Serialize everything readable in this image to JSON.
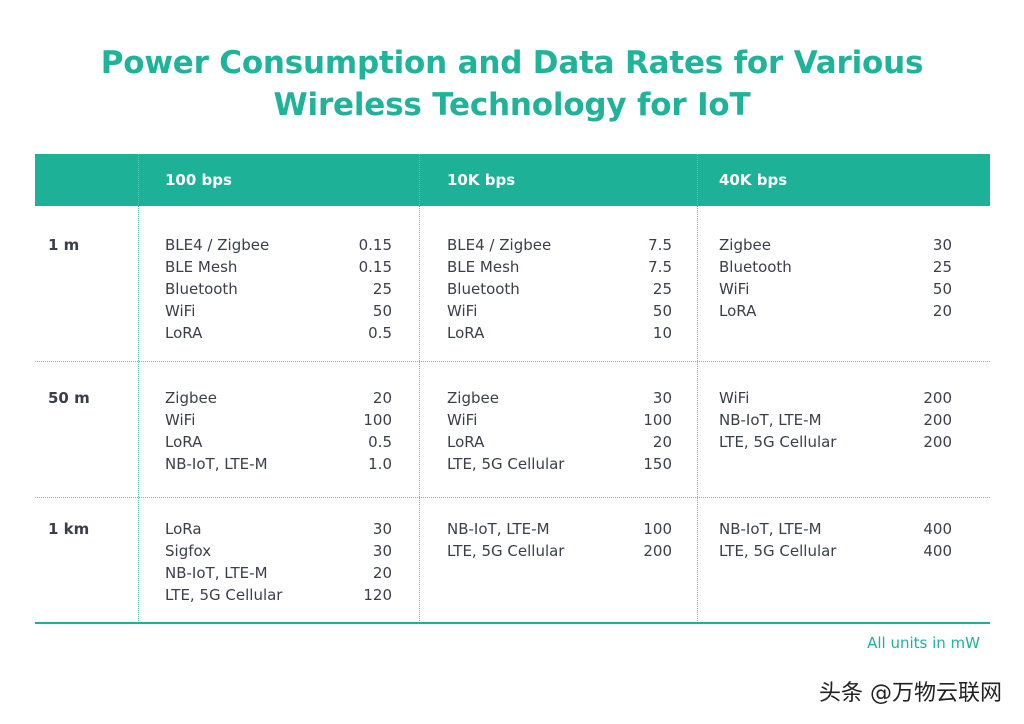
{
  "title_line1": "Power Consumption and Data Rates for Various",
  "title_line2": "Wireless Technology for IoT",
  "watermark": "头条 @万物云联网",
  "chart_data": {
    "type": "table",
    "columns": [
      "100 bps",
      "10K bps",
      "40K bps"
    ],
    "rows": [
      {
        "label": "1 m",
        "cells": [
          [
            [
              "BLE4 / Zigbee",
              "0.15"
            ],
            [
              "BLE Mesh",
              "0.15"
            ],
            [
              "Bluetooth",
              "25"
            ],
            [
              "WiFi",
              "50"
            ],
            [
              "LoRA",
              "0.5"
            ]
          ],
          [
            [
              "BLE4 / Zigbee",
              "7.5"
            ],
            [
              "BLE Mesh",
              "7.5"
            ],
            [
              "Bluetooth",
              "25"
            ],
            [
              "WiFi",
              "50"
            ],
            [
              "LoRA",
              "10"
            ]
          ],
          [
            [
              "Zigbee",
              "30"
            ],
            [
              "Bluetooth",
              "25"
            ],
            [
              "WiFi",
              "50"
            ],
            [
              "LoRA",
              "20"
            ]
          ]
        ]
      },
      {
        "label": "50 m",
        "cells": [
          [
            [
              "Zigbee",
              "20"
            ],
            [
              "WiFi",
              "100"
            ],
            [
              "LoRA",
              "0.5"
            ],
            [
              "NB-IoT, LTE-M",
              "1.0"
            ]
          ],
          [
            [
              "Zigbee",
              "30"
            ],
            [
              "WiFi",
              "100"
            ],
            [
              "LoRA",
              "20"
            ],
            [
              "LTE, 5G Cellular",
              "150"
            ]
          ],
          [
            [
              "WiFi",
              "200"
            ],
            [
              "NB-IoT, LTE-M",
              "200"
            ],
            [
              "LTE, 5G Cellular",
              "200"
            ]
          ]
        ]
      },
      {
        "label": "1 km",
        "cells": [
          [
            [
              "LoRa",
              "30"
            ],
            [
              "Sigfox",
              "30"
            ],
            [
              "NB-IoT, LTE-M",
              "20"
            ],
            [
              "LTE, 5G Cellular",
              "120"
            ]
          ],
          [
            [
              "NB-IoT, LTE-M",
              "100"
            ],
            [
              "LTE, 5G Cellular",
              "200"
            ]
          ],
          [
            [
              "NB-IoT, LTE-M",
              "400"
            ],
            [
              "LTE, 5G Cellular",
              "400"
            ]
          ]
        ]
      }
    ],
    "units_note": "All units in mW"
  },
  "colors": {
    "accent": "#1db197",
    "text": "#3a3f4a",
    "header_text": "#ffffff"
  }
}
